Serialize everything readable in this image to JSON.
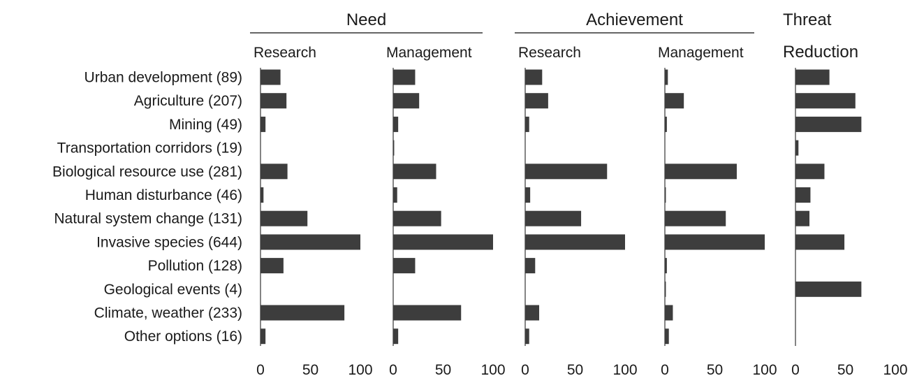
{
  "chart_data": {
    "type": "bar",
    "orientation": "horizontal",
    "groups": [
      {
        "title": "Need",
        "panels": [
          0,
          1
        ]
      },
      {
        "title": "Achievement",
        "panels": [
          2,
          3
        ]
      },
      {
        "title": "",
        "panels": [
          4
        ]
      }
    ],
    "categories": [
      "Urban development (89)",
      "Agriculture (207)",
      "Mining (49)",
      "Transportation corridors (19)",
      "Biological resource use (281)",
      "Human disturbance (46)",
      "Natural system change (131)",
      "Invasive species (644)",
      "Pollution (128)",
      "Geological events (4)",
      "Climate, weather (233)",
      "Other options (16)"
    ],
    "xlim": [
      0,
      100
    ],
    "ticks": [
      0,
      50,
      100
    ],
    "tick_labels": [
      "0",
      "50",
      "100"
    ],
    "grid": false,
    "series": [
      {
        "name": "Research",
        "values": [
          20,
          26,
          5,
          0,
          27,
          3,
          47,
          100,
          23,
          0,
          84,
          5
        ]
      },
      {
        "name": "Management",
        "values": [
          22,
          26,
          5,
          1,
          43,
          4,
          48,
          100,
          22,
          0,
          68,
          5
        ]
      },
      {
        "name": "Research",
        "values": [
          17,
          23,
          4,
          0,
          82,
          5,
          56,
          100,
          10,
          0,
          14,
          4
        ]
      },
      {
        "name": "Management",
        "values": [
          3,
          19,
          2,
          0,
          72,
          1,
          61,
          100,
          2,
          1,
          8,
          4
        ]
      },
      {
        "name": "Threat Reduction",
        "values": [
          34,
          60,
          66,
          3,
          29,
          15,
          14,
          49,
          0,
          66,
          0,
          0
        ]
      }
    ]
  }
}
